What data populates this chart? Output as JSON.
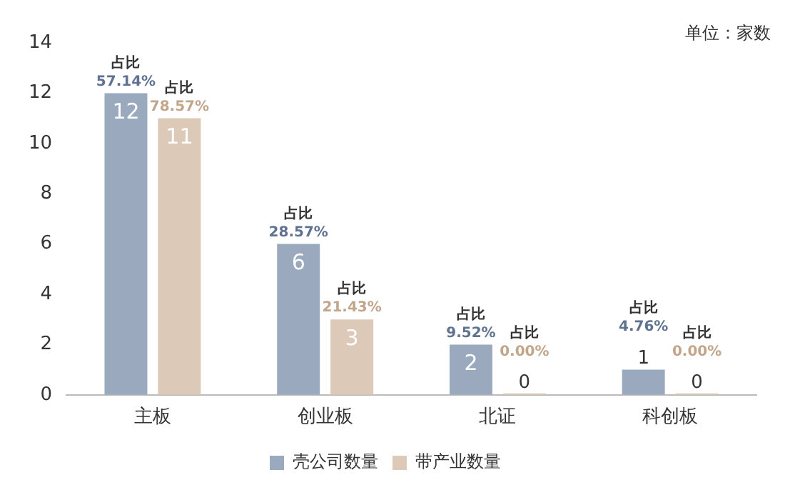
{
  "chart_data": {
    "type": "bar",
    "categories": [
      "主板",
      "创业板",
      "北证",
      "科创板"
    ],
    "series": [
      {
        "name": "壳公司数量",
        "color": "#9aa9bd",
        "values": [
          12,
          6,
          2,
          1
        ]
      },
      {
        "name": "带产业数量",
        "color": "#dcc9b8",
        "values": [
          11,
          3,
          0,
          0
        ]
      }
    ],
    "ylim": [
      0,
      14
    ],
    "yticks": [
      0,
      2,
      4,
      6,
      8,
      10,
      12,
      14
    ],
    "grid": false,
    "legend": "bottom",
    "data_labels": true,
    "annotations": [
      "单位：家数",
      {
        "text": "占比\n57.14%",
        "x": "主板",
        "y": 12
      },
      {
        "text": "占比\n78.57%",
        "x": "主板",
        "y": 11
      },
      {
        "text": "占比\n28.57%",
        "x": "创业板",
        "y": 6
      },
      {
        "text": "占比\n21.43%",
        "x": "创业板",
        "y": 3
      },
      {
        "text": "占比\n9.52%",
        "x": "北证",
        "y": 2
      },
      {
        "text": "占比\n0.00%",
        "x": "北证",
        "y": 0
      },
      {
        "text": "占比\n4.76%",
        "x": "科创板",
        "y": 1
      },
      {
        "text": "占比\n0.00%",
        "x": "科创板",
        "y": 0
      }
    ]
  }
}
